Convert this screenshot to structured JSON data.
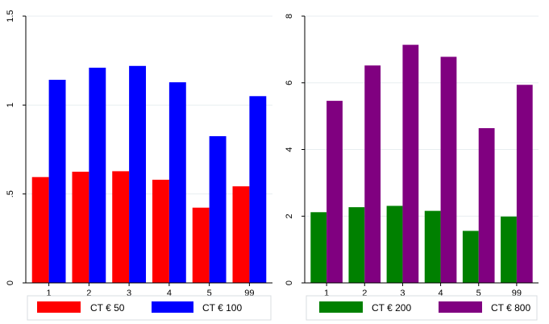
{
  "chart_data": [
    {
      "type": "bar",
      "categories": [
        "1",
        "2",
        "3",
        "4",
        "5",
        "99"
      ],
      "series": [
        {
          "name": "CT € 50",
          "color": "#ff0000",
          "values": [
            0.595,
            0.625,
            0.628,
            0.58,
            0.423,
            0.543
          ]
        },
        {
          "name": "CT € 100",
          "color": "#0000ff",
          "values": [
            1.142,
            1.21,
            1.22,
            1.128,
            0.825,
            1.05
          ]
        }
      ],
      "yticks": [
        "0",
        ".5",
        "1",
        "1.5"
      ],
      "ylim": [
        0,
        1.5
      ],
      "grid": true,
      "legend_position": "bottom"
    },
    {
      "type": "bar",
      "categories": [
        "1",
        "2",
        "3",
        "4",
        "5",
        "99"
      ],
      "series": [
        {
          "name": "CT € 200",
          "color": "#008000",
          "values": [
            2.12,
            2.27,
            2.31,
            2.16,
            1.56,
            1.99
          ]
        },
        {
          "name": "CT € 800",
          "color": "#800080",
          "values": [
            5.46,
            6.52,
            7.14,
            6.78,
            4.64,
            5.94
          ]
        }
      ],
      "yticks": [
        "0",
        "2",
        "4",
        "6",
        "8"
      ],
      "ylim": [
        0,
        8
      ],
      "grid": true,
      "legend_position": "bottom"
    }
  ]
}
